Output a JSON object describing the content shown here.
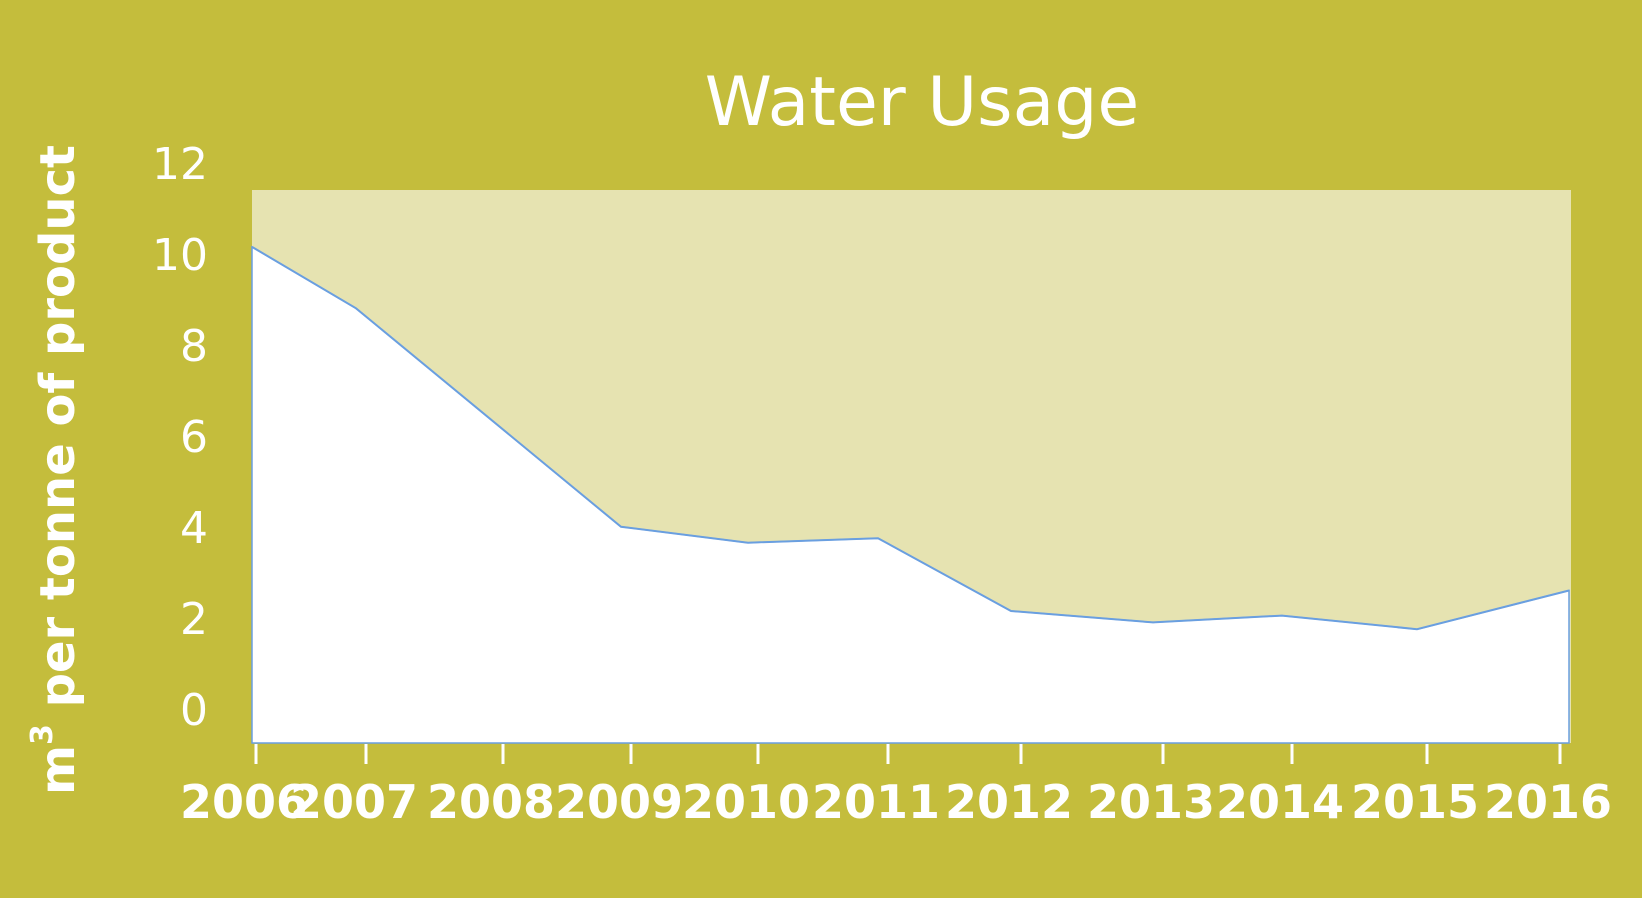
{
  "chart_data": {
    "type": "area",
    "title": "Water Usage",
    "ylabel_base": "m",
    "ylabel_sup": "3",
    "ylabel_rest": " per tonne of product",
    "xlabel": "",
    "categories": [
      "2006",
      "2007",
      "2008",
      "2009",
      "2010",
      "2011",
      "2012",
      "2013",
      "2014",
      "2015",
      "2016"
    ],
    "series": [
      {
        "values": [
          10.9,
          9.55,
          null,
          4.75,
          4.4,
          4.5,
          2.9,
          2.65,
          2.8,
          2.5,
          3.35
        ]
      }
    ],
    "yticks": [
      0,
      2,
      4,
      6,
      8,
      10,
      12
    ],
    "ylim": [
      0,
      12.15
    ],
    "grid": false,
    "legend": "none",
    "colors": {
      "background": "#c4bd3c",
      "plot_area": "#e6e3b1",
      "area_fill": "#ffffff",
      "line": "#6a9fe0",
      "text": "#ffffff"
    }
  }
}
